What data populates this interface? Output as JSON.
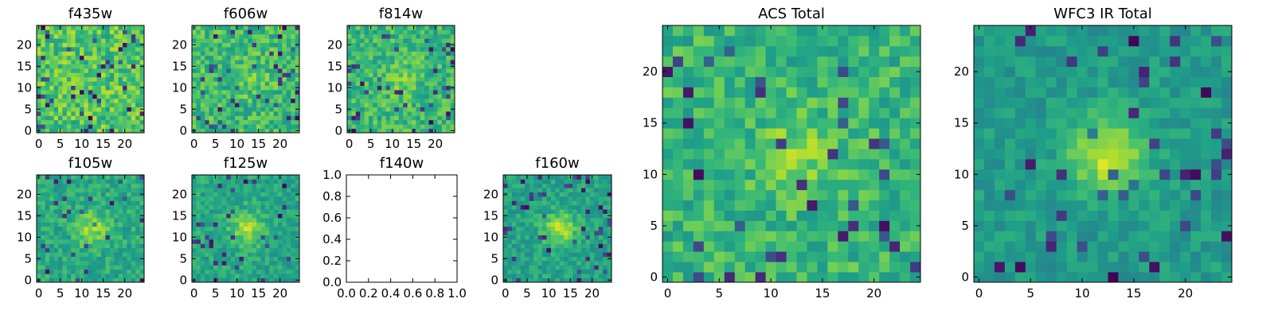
{
  "chart_data": [
    {
      "type": "heatmap",
      "title": "f435w",
      "xticks": [
        "0",
        "5",
        "10",
        "15",
        "20"
      ],
      "yticks": [
        "0",
        "5",
        "10",
        "15",
        "20"
      ],
      "xlim": [
        0,
        25
      ],
      "ylim": [
        0,
        25
      ],
      "colormap": "viridis",
      "empty": false,
      "seed": 11,
      "peak": 0
    },
    {
      "type": "heatmap",
      "title": "f606w",
      "xticks": [
        "0",
        "5",
        "10",
        "15",
        "20"
      ],
      "yticks": [
        "0",
        "5",
        "10",
        "15",
        "20"
      ],
      "xlim": [
        0,
        25
      ],
      "ylim": [
        0,
        25
      ],
      "colormap": "viridis",
      "empty": false,
      "seed": 23,
      "peak": 0.15
    },
    {
      "type": "heatmap",
      "title": "f814w",
      "xticks": [
        "0",
        "5",
        "10",
        "15",
        "20"
      ],
      "yticks": [
        "0",
        "5",
        "10",
        "15",
        "20"
      ],
      "xlim": [
        0,
        25
      ],
      "ylim": [
        0,
        25
      ],
      "colormap": "viridis",
      "empty": false,
      "seed": 37,
      "peak": 0.2
    },
    {
      "type": "heatmap",
      "title": "f105w",
      "xticks": [
        "0",
        "5",
        "10",
        "15",
        "20"
      ],
      "yticks": [
        "0",
        "5",
        "10",
        "15",
        "20"
      ],
      "xlim": [
        0,
        25
      ],
      "ylim": [
        0,
        25
      ],
      "colormap": "viridis",
      "empty": false,
      "seed": 41,
      "peak": 0.45
    },
    {
      "type": "heatmap",
      "title": "f125w",
      "xticks": [
        "0",
        "5",
        "10",
        "15",
        "20"
      ],
      "yticks": [
        "0",
        "5",
        "10",
        "15",
        "20"
      ],
      "xlim": [
        0,
        25
      ],
      "ylim": [
        0,
        25
      ],
      "colormap": "viridis",
      "empty": false,
      "seed": 53,
      "peak": 0.5
    },
    {
      "type": "heatmap",
      "title": "f140w",
      "xticks": [
        "0.0",
        "0.2",
        "0.4",
        "0.6",
        "0.8",
        "1.0"
      ],
      "yticks": [
        "0.0",
        "0.2",
        "0.4",
        "0.6",
        "0.8",
        "1.0"
      ],
      "xlim": [
        0,
        1
      ],
      "ylim": [
        0,
        1
      ],
      "colormap": "viridis",
      "empty": true,
      "seed": 0,
      "peak": 0
    },
    {
      "type": "heatmap",
      "title": "f160w",
      "xticks": [
        "0",
        "5",
        "10",
        "15",
        "20"
      ],
      "yticks": [
        "0",
        "5",
        "10",
        "15",
        "20"
      ],
      "xlim": [
        0,
        25
      ],
      "ylim": [
        0,
        25
      ],
      "colormap": "viridis",
      "empty": false,
      "seed": 67,
      "peak": 0.55
    },
    {
      "type": "heatmap",
      "title": "ACS Total",
      "xticks": [
        "0",
        "5",
        "10",
        "15",
        "20"
      ],
      "yticks": [
        "0",
        "5",
        "10",
        "15",
        "20"
      ],
      "xlim": [
        0,
        25
      ],
      "ylim": [
        0,
        25
      ],
      "colormap": "viridis",
      "empty": false,
      "seed": 79,
      "peak": 0.25
    },
    {
      "type": "heatmap",
      "title": "WFC3 IR Total",
      "xticks": [
        "0",
        "5",
        "10",
        "15",
        "20"
      ],
      "yticks": [
        "0",
        "5",
        "10",
        "15",
        "20"
      ],
      "xlim": [
        0,
        25
      ],
      "ylim": [
        0,
        25
      ],
      "colormap": "viridis",
      "empty": false,
      "seed": 97,
      "peak": 0.7
    }
  ]
}
